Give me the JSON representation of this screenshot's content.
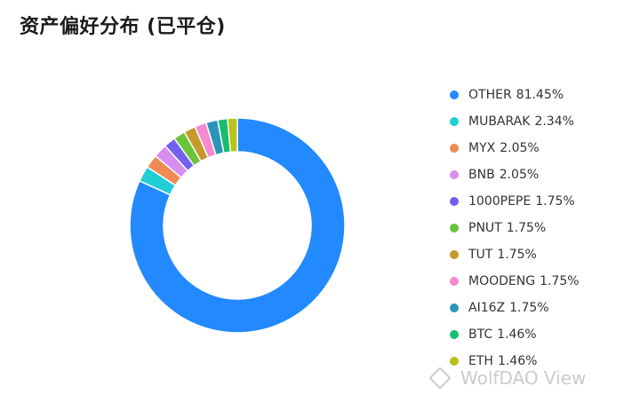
{
  "page": {
    "title": "资产偏好分布 (已平仓)",
    "watermark": "WolfDAO View",
    "watermark_icon": "diamond-logo-icon"
  },
  "chart_data": {
    "type": "pie",
    "variant": "donut",
    "title": "资产偏好分布 (已平仓)",
    "legend_position": "right",
    "slices": [
      {
        "label": "OTHER",
        "value": 81.45,
        "display": "81.45%",
        "color": "#2389ff"
      },
      {
        "label": "MUBARAK",
        "value": 2.34,
        "display": "2.34%",
        "color": "#1fcfd4"
      },
      {
        "label": "MYX",
        "value": 2.05,
        "display": "2.05%",
        "color": "#ef8a54"
      },
      {
        "label": "BNB",
        "value": 2.05,
        "display": "2.05%",
        "color": "#d88ef0"
      },
      {
        "label": "1000PEPE",
        "value": 1.75,
        "display": "1.75%",
        "color": "#7360ec"
      },
      {
        "label": "PNUT",
        "value": 1.75,
        "display": "1.75%",
        "color": "#6ac43a"
      },
      {
        "label": "TUT",
        "value": 1.75,
        "display": "1.75%",
        "color": "#c49a2a"
      },
      {
        "label": "MOODENG",
        "value": 1.75,
        "display": "1.75%",
        "color": "#f58ad0"
      },
      {
        "label": "AI16Z",
        "value": 1.75,
        "display": "1.75%",
        "color": "#2a95b8"
      },
      {
        "label": "BTC",
        "value": 1.46,
        "display": "1.46%",
        "color": "#18bd6e"
      },
      {
        "label": "ETH",
        "value": 1.46,
        "display": "1.46%",
        "color": "#b8c21a"
      }
    ]
  }
}
